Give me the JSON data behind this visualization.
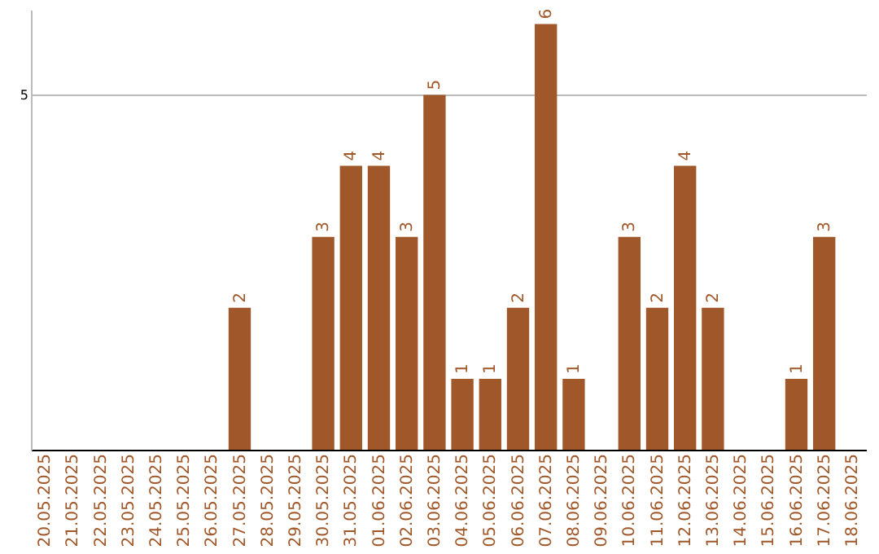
{
  "chart_data": {
    "type": "bar",
    "categories": [
      "20.05.2025",
      "21.05.2025",
      "22.05.2025",
      "23.05.2025",
      "24.05.2025",
      "25.05.2025",
      "26.05.2025",
      "27.05.2025",
      "28.05.2025",
      "29.05.2025",
      "30.05.2025",
      "31.05.2025",
      "01.06.2025",
      "02.06.2025",
      "03.06.2025",
      "04.06.2025",
      "05.06.2025",
      "06.06.2025",
      "07.06.2025",
      "08.06.2025",
      "09.06.2025",
      "10.06.2025",
      "11.06.2025",
      "12.06.2025",
      "13.06.2025",
      "14.06.2025",
      "15.06.2025",
      "16.06.2025",
      "17.06.2025",
      "18.06.2025"
    ],
    "values": [
      0,
      0,
      0,
      0,
      0,
      0,
      0,
      2,
      0,
      0,
      3,
      4,
      4,
      3,
      5,
      1,
      1,
      2,
      6,
      1,
      0,
      3,
      2,
      4,
      2,
      0,
      0,
      1,
      3,
      0
    ],
    "value_labels": [
      null,
      null,
      null,
      null,
      null,
      null,
      null,
      "2",
      null,
      null,
      "3",
      "4",
      "4",
      "3",
      "5",
      "1",
      "1",
      "2",
      "6",
      "1",
      null,
      "3",
      "2",
      "4",
      "2",
      null,
      null,
      "1",
      "3",
      null
    ],
    "color": "#a0582a",
    "ylim": [
      0,
      6.2
    ],
    "yticks": [
      5
    ],
    "grid": "y"
  }
}
